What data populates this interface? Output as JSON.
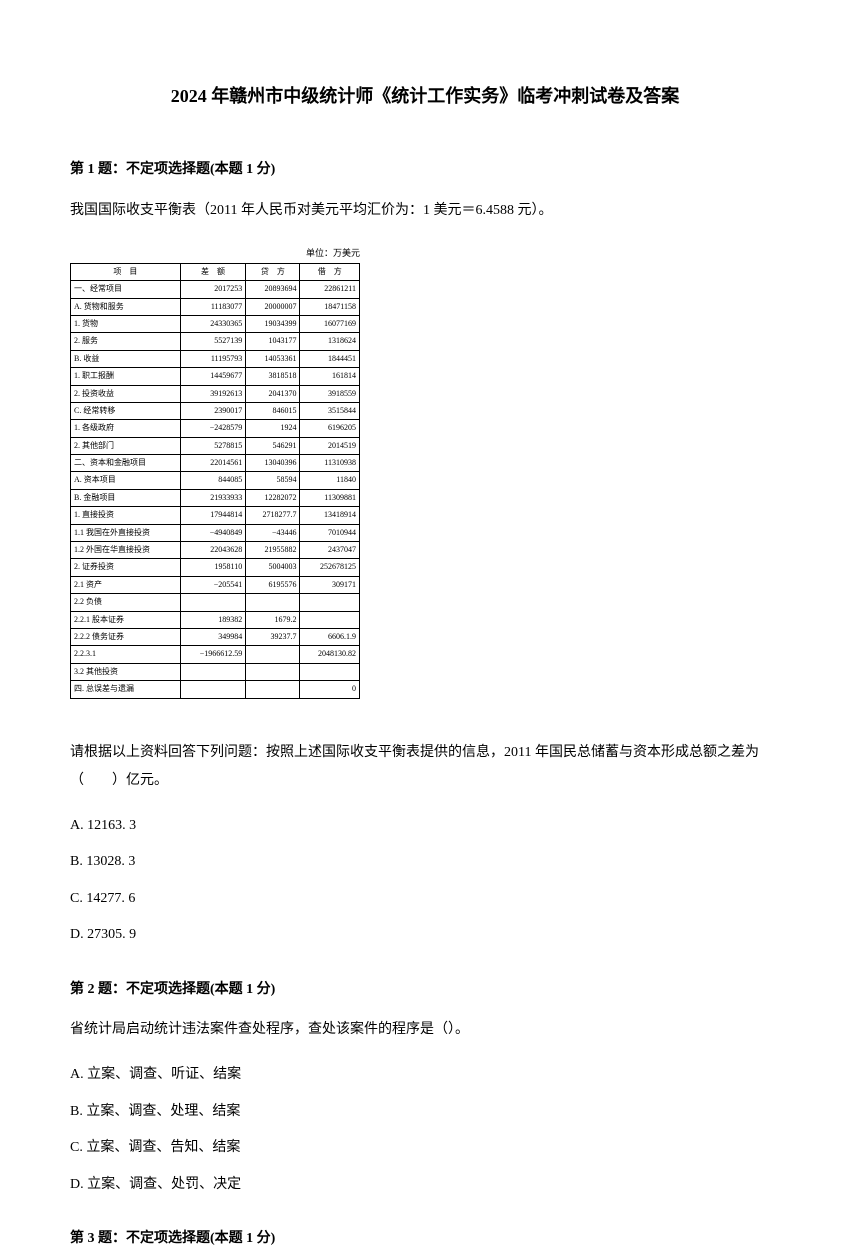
{
  "title": "2024 年赣州市中级统计师《统计工作实务》临考冲刺试卷及答案",
  "q1": {
    "header": "第 1 题：不定项选择题(本题 1 分)",
    "intro": "我国国际收支平衡表（2011 年人民币对美元平均汇价为：1 美元＝6.4588 元）。",
    "table_unit": "单位：万美元",
    "table": {
      "headers": [
        "项　目",
        "差　额",
        "贷　方",
        "借　方"
      ],
      "rows": [
        [
          "一、经常项目",
          "2017253",
          "20893694",
          "22861211"
        ],
        [
          "A. 货物和服务",
          "11183077",
          "20000007",
          "18471158"
        ],
        [
          "1. 货物",
          "24330365",
          "19034399",
          "16077169"
        ],
        [
          "2. 服务",
          "5527139",
          "1043177",
          "1318624"
        ],
        [
          "B. 收益",
          "11195793",
          "14053361",
          "1844451"
        ],
        [
          "1. 职工报酬",
          "14459677",
          "3818518",
          "161814"
        ],
        [
          "2. 投资收益",
          "39192613",
          "2041370",
          "3918559"
        ],
        [
          "C. 经常转移",
          "2390017",
          "846015",
          "3515844"
        ],
        [
          "1. 各级政府",
          "−2428579",
          "1924",
          "6196205"
        ],
        [
          "2. 其他部门",
          "5278815",
          "546291",
          "2014519"
        ],
        [
          "二、资本和金融项目",
          "22014561",
          "13040396",
          "11310938"
        ],
        [
          "A. 资本项目",
          "844085",
          "58594",
          "11840"
        ],
        [
          "B. 金融项目",
          "21933933",
          "12282072",
          "11309881"
        ],
        [
          "1. 直接投资",
          "17944814",
          "2718277.7",
          "13418914"
        ],
        [
          "1.1 我国在外直接投资",
          "−4940849",
          "−43446",
          "7010944"
        ],
        [
          "1.2 外国在华直接投资",
          "22043628",
          "21955882",
          "2437047"
        ],
        [
          "2. 证券投资",
          "1958110",
          "5004003",
          "252678125"
        ],
        [
          "2.1 资产",
          "−205541",
          "6195576",
          "309171"
        ],
        [
          "2.2 负债",
          "",
          "",
          ""
        ],
        [
          "2.2.1 股本证券",
          "189382",
          "1679.2",
          ""
        ],
        [
          "2.2.2 债务证券",
          "349984",
          "39237.7",
          "6606.1.9"
        ],
        [
          "2.2.3.1",
          "−1966612.59",
          "",
          "2048130.82"
        ],
        [
          "3.2 其他投资",
          "",
          "",
          ""
        ],
        [
          "四. 总误差与遗漏",
          "",
          "",
          "0"
        ]
      ]
    },
    "followup": "请根据以上资料回答下列问题：按照上述国际收支平衡表提供的信息，2011 年国民总储蓄与资本形成总额之差为（　　）亿元。",
    "optA": "A. 12163. 3",
    "optB": "B. 13028. 3",
    "optC": "C. 14277. 6",
    "optD": "D. 27305. 9"
  },
  "q2": {
    "header": "第 2 题：不定项选择题(本题 1 分)",
    "text": "省统计局启动统计违法案件查处程序，查处该案件的程序是（）。",
    "optA": "A. 立案、调查、听证、结案",
    "optB": "B. 立案、调查、处理、结案",
    "optC": "C. 立案、调查、告知、结案",
    "optD": "D. 立案、调查、处罚、决定"
  },
  "q3": {
    "header": "第 3 题：不定项选择题(本题 1 分)"
  }
}
